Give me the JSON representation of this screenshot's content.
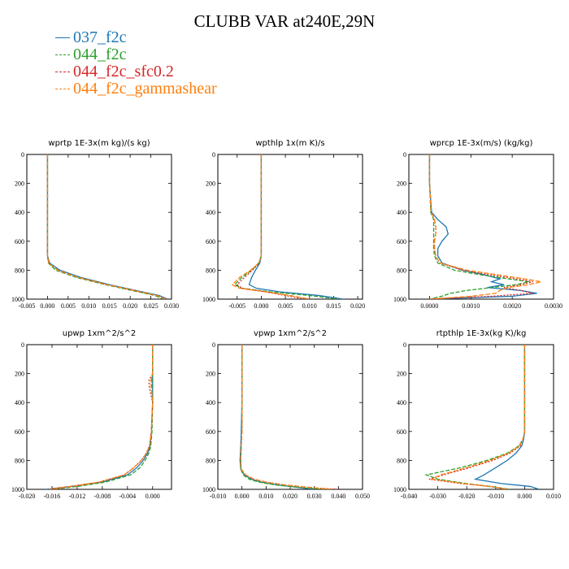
{
  "title": "CLUBB VAR at240E,29N",
  "legend": [
    {
      "name": "037_f2c",
      "color": "#1f77b4",
      "dash": false
    },
    {
      "name": "044_f2c",
      "color": "#2ca02c",
      "dash": true
    },
    {
      "name": "044_f2c_sfc0.2",
      "color": "#d62728",
      "dash": true
    },
    {
      "name": "044_f2c_gammashear",
      "color": "#ff7f0e",
      "dash": true
    }
  ],
  "chart_data": [
    {
      "type": "line",
      "title": "wprtp  1E-3x(m kg)/(s kg)",
      "xlim": [
        -0.005,
        0.03
      ],
      "xticks": [
        "-0.005",
        "0.000",
        "0.005",
        "0.010",
        "0.015",
        "0.020",
        "0.025",
        "0.030"
      ],
      "xtick_values": [
        -0.005,
        0,
        0.005,
        0.01,
        0.015,
        0.02,
        0.025,
        0.03
      ],
      "ylim": [
        1000,
        0
      ],
      "yticks": [
        "0",
        "200",
        "400",
        "600",
        "800",
        "1000"
      ],
      "y": [
        0,
        200,
        400,
        600,
        700,
        750,
        800,
        850,
        900,
        950,
        975,
        1000
      ],
      "series": [
        {
          "name": "037_f2c",
          "values": [
            0,
            0,
            0,
            0,
            0,
            0.0005,
            0.003,
            0.008,
            0.015,
            0.023,
            0.027,
            0.029
          ]
        },
        {
          "name": "044_f2c",
          "values": [
            0,
            0,
            0,
            0,
            0,
            0.0002,
            0.002,
            0.007,
            0.014,
            0.022,
            0.026,
            0.028
          ]
        },
        {
          "name": "044_f2c_sfc0.2",
          "values": [
            0,
            0,
            0,
            0,
            0,
            0.0003,
            0.0025,
            0.0075,
            0.0145,
            0.0225,
            0.0265,
            0.029
          ]
        },
        {
          "name": "044_f2c_gammashear",
          "values": [
            0,
            0,
            0,
            0,
            0,
            0.0003,
            0.0025,
            0.0075,
            0.0145,
            0.0225,
            0.0265,
            0.0285
          ]
        }
      ]
    },
    {
      "type": "line",
      "title": "wpthlp  1x(m K)/s",
      "xlim": [
        -0.009,
        0.021
      ],
      "xticks": [
        "-0.005",
        "0.000",
        "0.005",
        "0.010",
        "0.015",
        "0.020"
      ],
      "xtick_values": [
        -0.005,
        0,
        0.005,
        0.01,
        0.015,
        0.02
      ],
      "ylim": [
        1000,
        0
      ],
      "yticks": [
        "0",
        "200",
        "400",
        "600",
        "800",
        "1000"
      ],
      "y": [
        0,
        200,
        400,
        600,
        700,
        750,
        800,
        850,
        900,
        925,
        950,
        975,
        1000
      ],
      "series": [
        {
          "name": "037_f2c",
          "values": [
            0,
            0,
            0,
            0,
            0,
            -0.0003,
            -0.0012,
            -0.002,
            -0.0025,
            -0.001,
            0.004,
            0.012,
            0.017
          ]
        },
        {
          "name": "044_f2c",
          "values": [
            0,
            0,
            0,
            0,
            0,
            -0.0005,
            -0.002,
            -0.004,
            -0.0055,
            -0.004,
            0.002,
            0.01,
            0.016
          ]
        },
        {
          "name": "044_f2c_sfc0.2",
          "values": [
            0,
            0,
            0,
            0,
            0,
            -0.0004,
            -0.0018,
            -0.0035,
            -0.005,
            -0.004,
            0.001,
            0.005,
            0.009
          ]
        },
        {
          "name": "044_f2c_gammashear",
          "values": [
            0,
            0,
            0,
            0,
            0,
            -0.0005,
            -0.0022,
            -0.0045,
            -0.006,
            -0.0045,
            0.001,
            0.006,
            0.01
          ]
        }
      ]
    },
    {
      "type": "line",
      "title": "wprcp  1E-3x(m/s) (kg/kg)",
      "xlim": [
        -0.0005,
        0.003
      ],
      "xticks": [
        "0.0000",
        "0.0010",
        "0.0020",
        "0.0030"
      ],
      "xtick_values": [
        0,
        0.001,
        0.002,
        0.003
      ],
      "ylim": [
        1000,
        0
      ],
      "yticks": [
        "0",
        "200",
        "400",
        "600",
        "800",
        "1000"
      ],
      "y": [
        0,
        200,
        400,
        450,
        500,
        550,
        600,
        650,
        700,
        750,
        800,
        830,
        860,
        880,
        900,
        920,
        940,
        960,
        980,
        1000
      ],
      "series": [
        {
          "name": "037_f2c",
          "values": [
            0,
            0,
            5e-05,
            0.0002,
            0.0004,
            0.00045,
            0.0003,
            0.0002,
            0.0002,
            0.0003,
            0.0008,
            0.0013,
            0.0017,
            0.0015,
            0.0018,
            0.0014,
            0.0022,
            0.0026,
            0.002,
            0
          ]
        },
        {
          "name": "044_f2c",
          "values": [
            0,
            0,
            3e-05,
            0.0001,
            0.0001,
            0.0001,
            0.0001,
            0.0001,
            0.00012,
            0.0002,
            0.0006,
            0.0012,
            0.0019,
            0.0024,
            0.0021,
            0.0015,
            0.0009,
            0.0005,
            0.0003,
            0
          ]
        },
        {
          "name": "044_f2c_sfc0.2",
          "values": [
            0,
            0,
            4e-05,
            0.00012,
            0.00015,
            0.00015,
            0.00012,
            0.00012,
            0.00015,
            0.00025,
            0.0008,
            0.0014,
            0.0021,
            0.0025,
            0.0022,
            0.0018,
            0.0022,
            0.0025,
            0.0015,
            0
          ]
        },
        {
          "name": "044_f2c_gammashear",
          "values": [
            0,
            0,
            4e-05,
            0.00012,
            0.00015,
            0.00015,
            0.00012,
            0.00012,
            0.00015,
            0.00025,
            0.0009,
            0.0016,
            0.0023,
            0.0027,
            0.0024,
            0.0019,
            0.0017,
            0.0016,
            0.001,
            0
          ]
        }
      ]
    },
    {
      "type": "line",
      "title": "upwp  1xm^2/s^2",
      "xlim": [
        -0.02,
        0.003
      ],
      "xticks": [
        "-0.020",
        "-0.016",
        "-0.012",
        "-0.008",
        "-0.004",
        "0.000"
      ],
      "xtick_values": [
        -0.02,
        -0.016,
        -0.012,
        -0.008,
        -0.004,
        0
      ],
      "ylim": [
        1000,
        0
      ],
      "yticks": [
        "0",
        "200",
        "400",
        "600",
        "800",
        "1000"
      ],
      "y": [
        0,
        200,
        250,
        300,
        400,
        600,
        700,
        750,
        800,
        850,
        900,
        950,
        980,
        1000
      ],
      "series": [
        {
          "name": "037_f2c",
          "values": [
            0,
            0,
            0,
            0,
            0,
            -0.0002,
            -0.0004,
            -0.0008,
            -0.0015,
            -0.0025,
            -0.004,
            -0.008,
            -0.013,
            -0.017
          ]
        },
        {
          "name": "044_f2c",
          "values": [
            0,
            0,
            -0.0001,
            -0.0001,
            0,
            -0.0001,
            -0.0003,
            -0.0006,
            -0.0012,
            -0.002,
            -0.0035,
            -0.0075,
            -0.012,
            -0.016
          ]
        },
        {
          "name": "044_f2c_sfc0.2",
          "values": [
            0,
            0,
            -0.0006,
            -0.0005,
            0,
            -0.0002,
            -0.0005,
            -0.001,
            -0.0018,
            -0.003,
            -0.0045,
            -0.0085,
            -0.013,
            -0.0165
          ]
        },
        {
          "name": "044_f2c_gammashear",
          "values": [
            0,
            0,
            -0.0003,
            -0.0002,
            0,
            -0.0002,
            -0.0005,
            -0.001,
            -0.0018,
            -0.003,
            -0.0045,
            -0.0085,
            -0.013,
            -0.0165
          ]
        }
      ]
    },
    {
      "type": "line",
      "title": "vpwp  1xm^2/s^2",
      "xlim": [
        -0.01,
        0.05
      ],
      "xticks": [
        "-0.010",
        "0.000",
        "0.010",
        "0.020",
        "0.030",
        "0.040",
        "0.050"
      ],
      "xtick_values": [
        -0.01,
        0,
        0.01,
        0.02,
        0.03,
        0.04,
        0.05
      ],
      "ylim": [
        1000,
        0
      ],
      "yticks": [
        "0",
        "200",
        "400",
        "600",
        "800",
        "1000"
      ],
      "y": [
        0,
        200,
        400,
        600,
        700,
        800,
        860,
        900,
        930,
        950,
        970,
        990,
        1000
      ],
      "series": [
        {
          "name": "037_f2c",
          "values": [
            0,
            0,
            0,
            -0.0003,
            -0.0005,
            -0.0008,
            -0.0005,
            0.001,
            0.004,
            0.008,
            0.015,
            0.025,
            0.03
          ]
        },
        {
          "name": "044_f2c",
          "values": [
            0,
            0,
            0,
            0,
            -0.0003,
            -0.0005,
            -0.0005,
            0.0005,
            0.003,
            0.007,
            0.014,
            0.026,
            0.035
          ]
        },
        {
          "name": "044_f2c_sfc0.2",
          "values": [
            0,
            0,
            0,
            0,
            -0.0003,
            -0.0005,
            -0.0003,
            0.0015,
            0.005,
            0.01,
            0.018,
            0.03,
            0.04
          ]
        },
        {
          "name": "044_f2c_gammashear",
          "values": [
            0,
            0,
            0,
            0,
            -0.0003,
            -0.0005,
            -0.0003,
            0.0015,
            0.005,
            0.01,
            0.018,
            0.03,
            0.038
          ]
        }
      ]
    },
    {
      "type": "line",
      "title": "rtpthlp  1E-3x(kg K)/kg",
      "xlim": [
        -0.04,
        0.01
      ],
      "xticks": [
        "-0.040",
        "-0.030",
        "-0.020",
        "-0.010",
        "0.000",
        "0.010"
      ],
      "xtick_values": [
        -0.04,
        -0.03,
        -0.02,
        -0.01,
        0,
        0.01
      ],
      "ylim": [
        1000,
        0
      ],
      "yticks": [
        "0",
        "200",
        "400",
        "600",
        "800",
        "1000"
      ],
      "y": [
        0,
        200,
        400,
        600,
        650,
        700,
        750,
        800,
        850,
        900,
        930,
        960,
        980,
        1000
      ],
      "series": [
        {
          "name": "037_f2c",
          "values": [
            0,
            0,
            0,
            0,
            -0.0003,
            -0.001,
            -0.003,
            -0.006,
            -0.01,
            -0.014,
            -0.017,
            -0.008,
            0.002,
            0.005
          ]
        },
        {
          "name": "044_f2c",
          "values": [
            0,
            0,
            0,
            0,
            -0.0005,
            -0.002,
            -0.006,
            -0.013,
            -0.022,
            -0.034,
            -0.03,
            -0.02,
            -0.012,
            -0.005
          ]
        },
        {
          "name": "044_f2c_sfc0.2",
          "values": [
            0,
            0,
            0,
            0,
            -0.0005,
            -0.0015,
            -0.005,
            -0.011,
            -0.019,
            -0.028,
            -0.033,
            -0.022,
            -0.012,
            -0.006
          ]
        },
        {
          "name": "044_f2c_gammashear",
          "values": [
            0,
            0,
            0,
            0,
            -0.0005,
            -0.0018,
            -0.0055,
            -0.012,
            -0.02,
            -0.029,
            -0.032,
            -0.021,
            -0.012,
            -0.006
          ]
        }
      ]
    }
  ]
}
